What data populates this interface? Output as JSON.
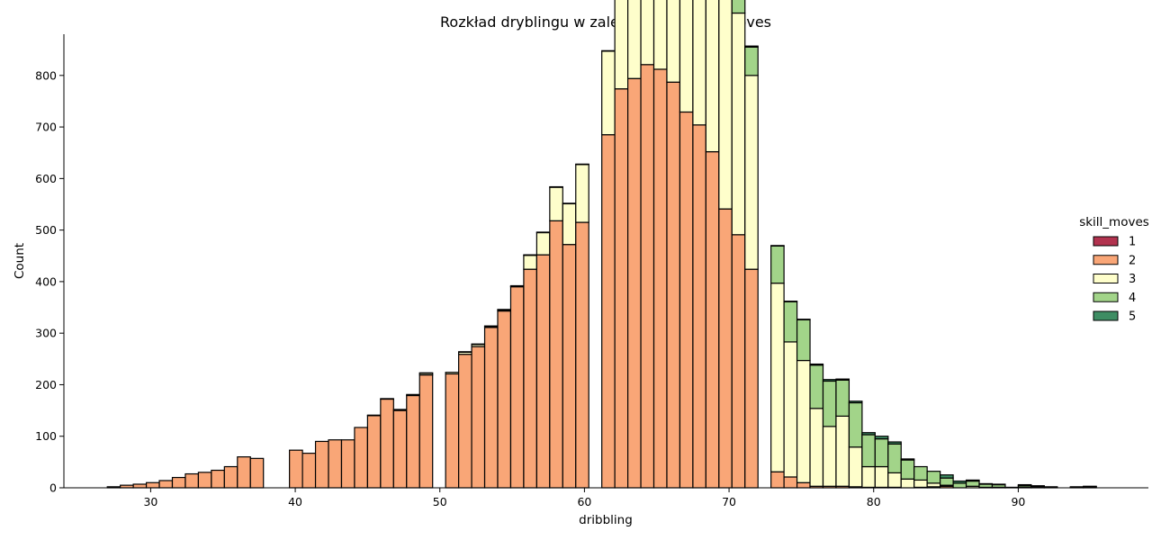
{
  "chart_data": {
    "type": "bar",
    "subtype": "stacked-histogram",
    "title": "Rozkład dryblingu w zależności od Skill Moves",
    "xlabel": "dribbling",
    "ylabel": "Count",
    "xlim": [
      24,
      99
    ],
    "ylim": [
      0,
      880
    ],
    "xticks": [
      30,
      40,
      50,
      60,
      70,
      80,
      90
    ],
    "yticks": [
      0,
      100,
      200,
      300,
      400,
      500,
      600,
      700,
      800
    ],
    "legend": {
      "title": "skill_moves",
      "placement": "center-right"
    },
    "colors": {
      "1": "#b2334f",
      "2": "#f9a677",
      "3": "#fefecb",
      "4": "#a2d489",
      "5": "#3e8d63"
    },
    "bin_start": 27,
    "bin_width": 0.9,
    "bins": 76,
    "series": [
      {
        "name": "1",
        "values": [
          0,
          0,
          0,
          0,
          0,
          0,
          0,
          0,
          0,
          0,
          0,
          0,
          0,
          0,
          0,
          0,
          0,
          0,
          0,
          0,
          0,
          0,
          0,
          0,
          0,
          0,
          0,
          0,
          0,
          0,
          0,
          0,
          0,
          0,
          0,
          0,
          0,
          0,
          0,
          0,
          0,
          0,
          0,
          0,
          0,
          0,
          0,
          0,
          0,
          0,
          0,
          0,
          0,
          0,
          0,
          0,
          0,
          0,
          0,
          0,
          0,
          0,
          0,
          0,
          0,
          0,
          0,
          0,
          0,
          0,
          0,
          0,
          0,
          0,
          0,
          0
        ]
      },
      {
        "name": "2",
        "values": [
          2,
          5,
          7,
          10,
          14,
          20,
          27,
          30,
          34,
          41,
          60,
          57,
          0,
          0,
          73,
          67,
          90,
          93,
          93,
          117,
          140,
          172,
          150,
          179,
          219,
          0,
          221,
          259,
          274,
          311,
          343,
          390,
          424,
          452,
          518,
          472,
          515,
          0,
          685,
          774,
          794,
          821,
          812,
          787,
          729,
          704,
          652,
          541,
          491,
          424,
          0,
          31,
          21,
          10,
          3,
          3,
          3,
          2,
          1,
          1,
          1,
          0,
          1,
          2,
          3,
          0,
          0,
          0,
          0,
          0,
          0,
          0,
          0,
          0,
          0,
          0
        ]
      },
      {
        "name": "3",
        "values": [
          0,
          0,
          0,
          0,
          0,
          0,
          0,
          0,
          0,
          0,
          0,
          0,
          0,
          0,
          0,
          0,
          0,
          0,
          0,
          0,
          1,
          1,
          2,
          2,
          3,
          0,
          3,
          4,
          4,
          2,
          2,
          1,
          27,
          43,
          65,
          79,
          112,
          0,
          162,
          199,
          291,
          339,
          403,
          501,
          489,
          509,
          484,
          441,
          430,
          376,
          0,
          366,
          262,
          237,
          151,
          116,
          136,
          77,
          40,
          40,
          28,
          17,
          14,
          7,
          2,
          0,
          3,
          1,
          1,
          0,
          1,
          2,
          1,
          0,
          1,
          2
        ]
      },
      {
        "name": "4",
        "values": [
          0,
          0,
          0,
          0,
          0,
          0,
          0,
          0,
          0,
          0,
          0,
          0,
          0,
          0,
          0,
          0,
          0,
          0,
          0,
          0,
          0,
          0,
          0,
          0,
          1,
          0,
          0,
          1,
          1,
          1,
          1,
          1,
          1,
          1,
          1,
          1,
          1,
          0,
          1,
          2,
          10,
          17,
          14,
          21,
          31,
          27,
          34,
          31,
          40,
          55,
          0,
          72,
          78,
          79,
          84,
          88,
          70,
          86,
          62,
          54,
          56,
          37,
          26,
          23,
          14,
          9,
          10,
          6,
          5,
          0,
          3,
          1,
          1,
          0,
          0,
          0
        ]
      },
      {
        "name": "5",
        "values": [
          0,
          0,
          0,
          0,
          0,
          0,
          0,
          0,
          0,
          0,
          0,
          0,
          0,
          0,
          0,
          0,
          0,
          0,
          0,
          0,
          0,
          0,
          0,
          0,
          0,
          0,
          0,
          0,
          0,
          0,
          0,
          0,
          0,
          0,
          0,
          0,
          0,
          0,
          0,
          0,
          1,
          1,
          1,
          1,
          3,
          1,
          1,
          1,
          2,
          2,
          0,
          1,
          1,
          1,
          2,
          3,
          2,
          3,
          4,
          5,
          4,
          2,
          0,
          0,
          6,
          4,
          2,
          1,
          1,
          1,
          2,
          1,
          0,
          0,
          1,
          1
        ]
      }
    ]
  }
}
